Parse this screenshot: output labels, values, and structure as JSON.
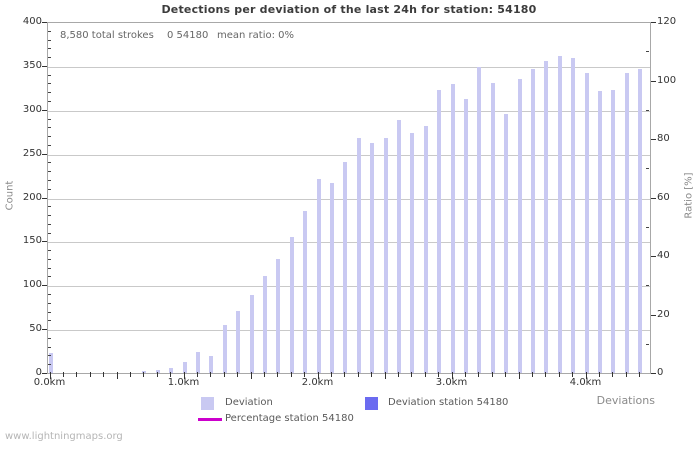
{
  "title": "Detections per deviation of the last 24h for station: 54180",
  "info": {
    "total_strokes": "8,580 total strokes",
    "station_strokes": "0 54180",
    "mean_ratio": "mean ratio: 0%"
  },
  "footer": {
    "site": "www.lightningmaps.org"
  },
  "chart_data": {
    "type": "bar",
    "title": "Detections per deviation of the last 24h for station: 54180",
    "xlabel": "Deviations",
    "ylabel_left": "Count",
    "ylabel_right": "Ratio [%]",
    "grid": "horizontal-only",
    "legend_position": "bottom-center",
    "x_unit": "km",
    "x_step_km": 0.1,
    "xlim_km": [
      0.0,
      4.5
    ],
    "ylim_left": [
      0,
      400
    ],
    "ylim_right": [
      0,
      120
    ],
    "y_ticks_left": [
      0,
      50,
      100,
      150,
      200,
      250,
      300,
      350,
      400
    ],
    "y_minor_step_left": 10,
    "y_ticks_right": [
      0,
      20,
      40,
      60,
      80,
      100,
      120
    ],
    "y_minor_step_right": 10,
    "x_major_labels": [
      {
        "km": 0,
        "label": "0.0km"
      },
      {
        "km": 1,
        "label": "1.0km"
      },
      {
        "km": 2,
        "label": "2.0km"
      },
      {
        "km": 3,
        "label": "3.0km"
      },
      {
        "km": 4,
        "label": "4.0km"
      }
    ],
    "x": [
      0.0,
      0.1,
      0.2,
      0.3,
      0.4,
      0.5,
      0.6,
      0.7,
      0.8,
      0.9,
      1.0,
      1.1,
      1.2,
      1.3,
      1.4,
      1.5,
      1.6,
      1.7,
      1.8,
      1.9,
      2.0,
      2.1,
      2.2,
      2.3,
      2.4,
      2.5,
      2.6,
      2.7,
      2.8,
      2.9,
      3.0,
      3.1,
      3.2,
      3.3,
      3.4,
      3.5,
      3.6,
      3.7,
      3.8,
      3.9,
      4.0,
      4.1,
      4.2,
      4.3,
      4.4
    ],
    "series": [
      {
        "name": "Deviation",
        "values": [
          23,
          0,
          0,
          0,
          0,
          0,
          0,
          2,
          4,
          6,
          12,
          24,
          19,
          55,
          71,
          89,
          110,
          130,
          155,
          185,
          221,
          216,
          240,
          268,
          262,
          268,
          288,
          273,
          282,
          322,
          329,
          312,
          349,
          330,
          295,
          335,
          347,
          356,
          361,
          359,
          342,
          321,
          323,
          342,
          346
        ]
      },
      {
        "name": "Deviation station 54180",
        "values": [
          0,
          0,
          0,
          0,
          0,
          0,
          0,
          0,
          0,
          0,
          0,
          0,
          0,
          0,
          0,
          0,
          0,
          0,
          0,
          0,
          0,
          0,
          0,
          0,
          0,
          0,
          0,
          0,
          0,
          0,
          0,
          0,
          0,
          0,
          0,
          0,
          0,
          0,
          0,
          0,
          0,
          0,
          0,
          0,
          0
        ]
      },
      {
        "name": "Percentage station 54180",
        "values": [
          0,
          0,
          0,
          0,
          0,
          0,
          0,
          0,
          0,
          0,
          0,
          0,
          0,
          0,
          0,
          0,
          0,
          0,
          0,
          0,
          0,
          0,
          0,
          0,
          0,
          0,
          0,
          0,
          0,
          0,
          0,
          0,
          0,
          0,
          0,
          0,
          0,
          0,
          0,
          0,
          0,
          0,
          0,
          0,
          0
        ]
      }
    ],
    "colors": {
      "deviation": "#c9c9f2",
      "deviation_station": "#6b6bf0",
      "percentage": "#cc00cc",
      "gridline": "#c9c9c9",
      "plot_border": "#a8a8a8"
    },
    "legend": [
      {
        "id": "deviation",
        "label": "Deviation",
        "swatch": "box"
      },
      {
        "id": "deviation-station",
        "label": "Deviation station 54180",
        "swatch": "box"
      },
      {
        "id": "percentage",
        "label": "Percentage station 54180",
        "swatch": "line"
      }
    ]
  }
}
